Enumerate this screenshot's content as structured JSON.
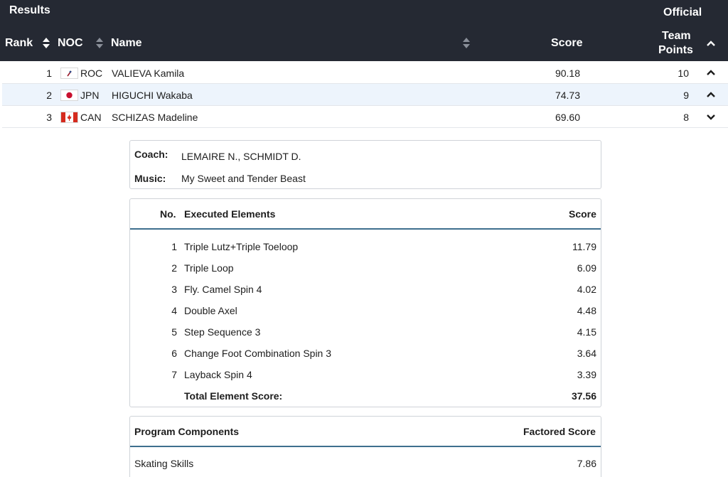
{
  "header": {
    "title": "Results",
    "status": "Official",
    "columns": {
      "rank": "Rank",
      "noc": "NOC",
      "name": "Name",
      "score": "Score",
      "team_points_line1": "Team",
      "team_points_line2": "Points"
    }
  },
  "results": [
    {
      "rank": "1",
      "noc": "ROC",
      "flag": "roc-flag-icon",
      "name": "VALIEVA Kamila",
      "score": "90.18",
      "points": "10",
      "expanded": true
    },
    {
      "rank": "2",
      "noc": "JPN",
      "flag": "japan-flag-icon",
      "name": "HIGUCHI Wakaba",
      "score": "74.73",
      "points": "9",
      "expanded": true
    },
    {
      "rank": "3",
      "noc": "CAN",
      "flag": "canada-flag-icon",
      "name": "SCHIZAS Madeline",
      "score": "69.60",
      "points": "8",
      "expanded": false
    }
  ],
  "details": {
    "coach_label": "Coach:",
    "coach": "LEMAIRE N., SCHMIDT D.",
    "music_label": "Music:",
    "music": "My Sweet and Tender Beast"
  },
  "elements": {
    "col_no": "No.",
    "col_element": "Executed Elements",
    "col_score": "Score",
    "rows": [
      {
        "no": "1",
        "element": "Triple Lutz+Triple Toeloop",
        "score": "11.79"
      },
      {
        "no": "2",
        "element": "Triple Loop",
        "score": "6.09"
      },
      {
        "no": "3",
        "element": "Fly. Camel Spin 4",
        "score": "4.02"
      },
      {
        "no": "4",
        "element": "Double Axel",
        "score": "4.48"
      },
      {
        "no": "5",
        "element": "Step Sequence 3",
        "score": "4.15"
      },
      {
        "no": "6",
        "element": "Change Foot Combination Spin 3",
        "score": "3.64"
      },
      {
        "no": "7",
        "element": "Layback Spin 4",
        "score": "3.39"
      }
    ],
    "total_label": "Total Element Score:",
    "total": "37.56"
  },
  "components": {
    "col_name": "Program Components",
    "col_score": "Factored Score",
    "rows": [
      {
        "name": "Skating Skills",
        "score": "7.86"
      }
    ]
  },
  "colors": {
    "header_bg": "#252933",
    "highlight_row": "#edf4fc",
    "accent_line": "#3e6f8e"
  }
}
